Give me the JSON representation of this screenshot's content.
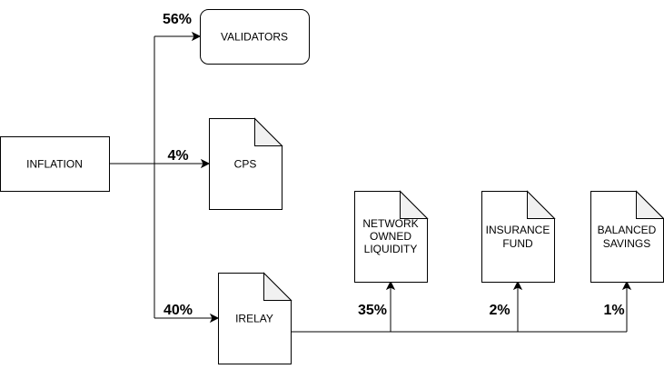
{
  "nodes": {
    "inflation": {
      "label": "INFLATION"
    },
    "validators": {
      "label": "VALIDATORS"
    },
    "cps": {
      "label": "CPS"
    },
    "irelay": {
      "label": "IRELAY"
    },
    "network_owned_liquidity": {
      "label_lines": [
        "NETWORK",
        "OWNED",
        "LIQUIDITY"
      ]
    },
    "insurance_fund": {
      "label_lines": [
        "INSURANCE",
        "FUND"
      ]
    },
    "balanced_savings": {
      "label_lines": [
        "BALANCED",
        "SAVINGS"
      ]
    }
  },
  "percentages": {
    "validators": "56%",
    "cps": "4%",
    "irelay": "40%",
    "network_owned_liquidity": "35%",
    "insurance_fund": "2%",
    "balanced_savings": "1%"
  }
}
